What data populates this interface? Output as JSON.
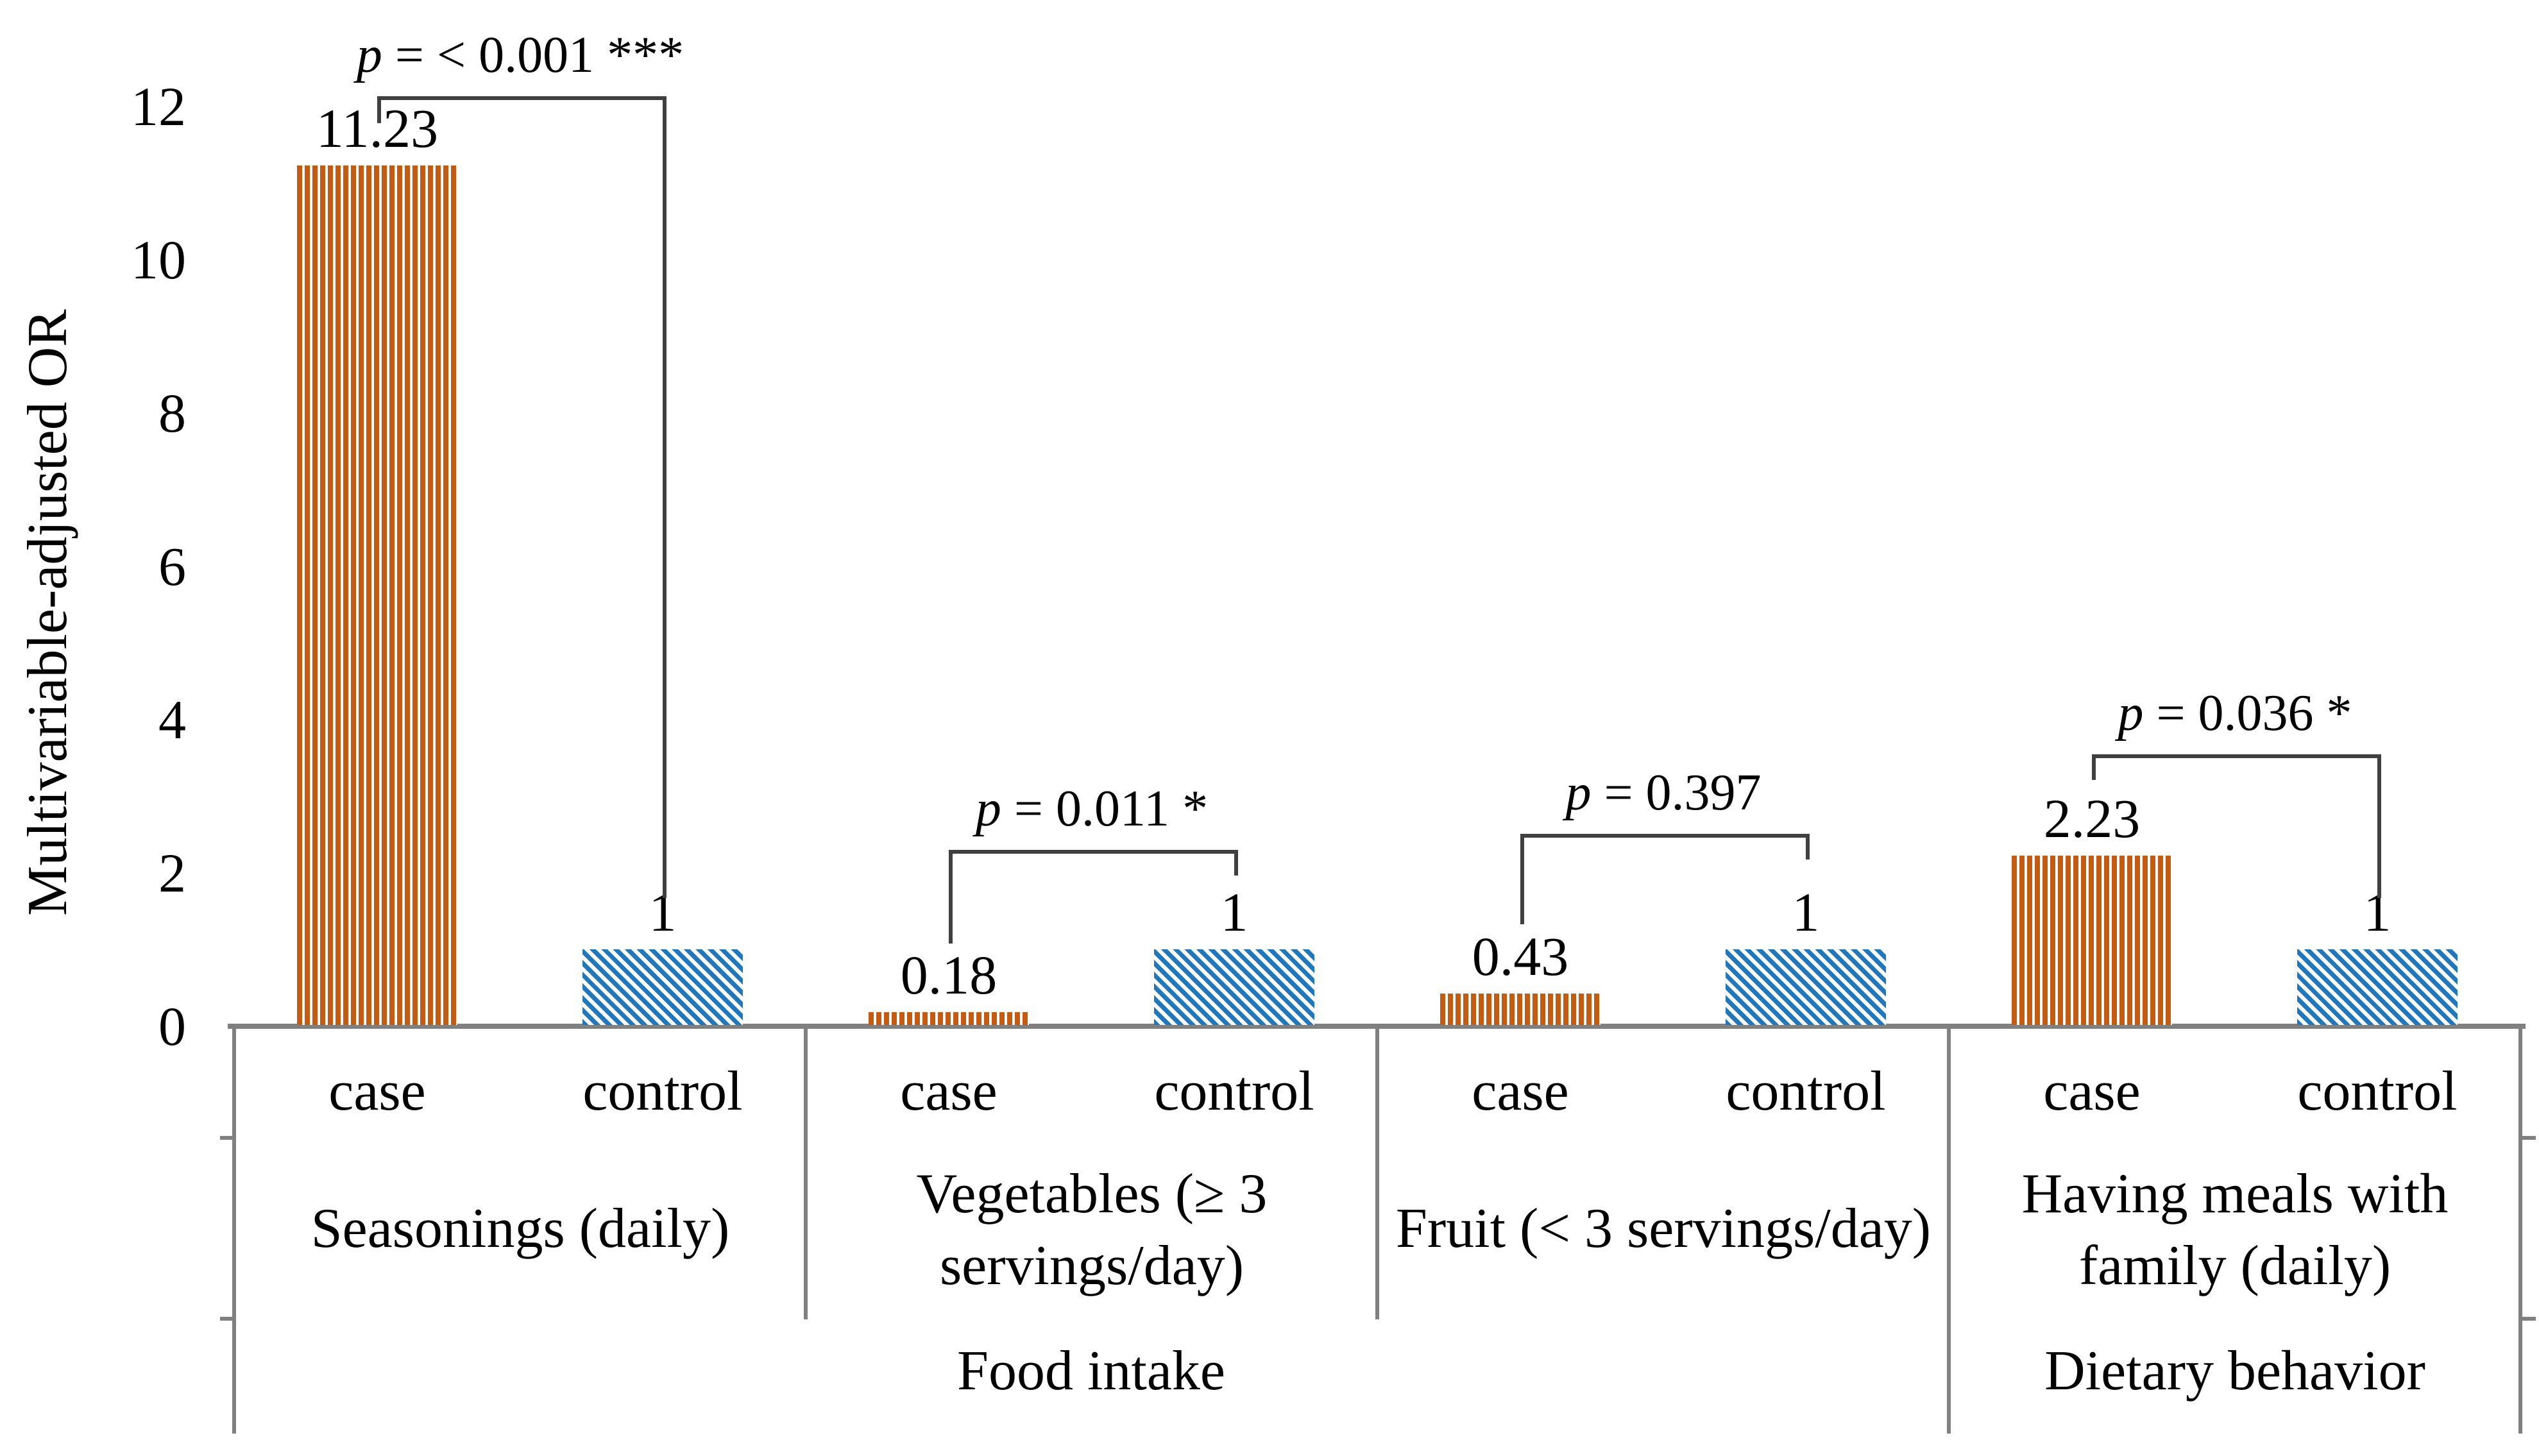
{
  "figure": {
    "y_axis": {
      "title": "Multivariable-adjusted OR",
      "ticks": [
        "0",
        "2",
        "4",
        "6",
        "8",
        "10",
        "12"
      ]
    },
    "sections": [
      {
        "label": "Food intake"
      },
      {
        "label": "Dietary behavior"
      }
    ],
    "groups": [
      {
        "name_lines": [
          "Seasonings (daily)"
        ],
        "p_label": "p = < 0.001 ***",
        "bars": [
          {
            "series": "case",
            "value": 11.23,
            "label": "11.23"
          },
          {
            "series": "control",
            "value": 1,
            "label": "1"
          }
        ]
      },
      {
        "name_lines": [
          "Vegetables (≥ 3",
          "servings/day)"
        ],
        "p_label": "p = 0.011 *",
        "bars": [
          {
            "series": "case",
            "value": 0.18,
            "label": "0.18"
          },
          {
            "series": "control",
            "value": 1,
            "label": "1"
          }
        ]
      },
      {
        "name_lines": [
          "Fruit (< 3 servings/day)"
        ],
        "p_label": "p = 0.397",
        "bars": [
          {
            "series": "case",
            "value": 0.43,
            "label": "0.43"
          },
          {
            "series": "control",
            "value": 1,
            "label": "1"
          }
        ]
      },
      {
        "name_lines": [
          "Having meals with",
          "family (daily)"
        ],
        "p_label": "p = 0.036 *",
        "bars": [
          {
            "series": "case",
            "value": 2.23,
            "label": "2.23"
          },
          {
            "series": "control",
            "value": 1,
            "label": "1"
          }
        ]
      }
    ],
    "colors": {
      "case_orange": "#C55A11",
      "control_blue": "#1F78BE",
      "axis_gray": "#808080",
      "bracket_gray": "#404040"
    }
  },
  "chart_data": {
    "type": "bar",
    "title": "",
    "xlabel": "",
    "ylabel": "Multivariable-adjusted OR",
    "ylim": [
      0,
      12
    ],
    "yticks": [
      0,
      2,
      4,
      6,
      8,
      10,
      12
    ],
    "grid": false,
    "legend_position": "none",
    "categories": [
      "Seasonings (daily)",
      "Vegetables (≥ 3 servings/day)",
      "Fruit (< 3 servings/day)",
      "Having meals with family (daily)"
    ],
    "category_sections": [
      {
        "label": "Food intake",
        "covers_categories": [
          0,
          1,
          2
        ]
      },
      {
        "label": "Dietary behavior",
        "covers_categories": [
          3
        ]
      }
    ],
    "series": [
      {
        "name": "case",
        "pattern": "orange vertical stripes",
        "values": [
          11.23,
          0.18,
          0.43,
          2.23
        ]
      },
      {
        "name": "control",
        "pattern": "blue diagonal stripes",
        "values": [
          1,
          1,
          1,
          1
        ]
      }
    ],
    "data_labels": {
      "case": [
        "11.23",
        "0.18",
        "0.43",
        "2.23"
      ],
      "control": [
        "1",
        "1",
        "1",
        "1"
      ]
    },
    "significance_annotations": [
      {
        "category": "Seasonings (daily)",
        "p_text": "p = < 0.001 ***"
      },
      {
        "category": "Vegetables (≥ 3 servings/day)",
        "p_text": "p = 0.011 *"
      },
      {
        "category": "Fruit (< 3 servings/day)",
        "p_text": "p = 0.397"
      },
      {
        "category": "Having meals with family (daily)",
        "p_text": "p = 0.036 *"
      }
    ]
  }
}
